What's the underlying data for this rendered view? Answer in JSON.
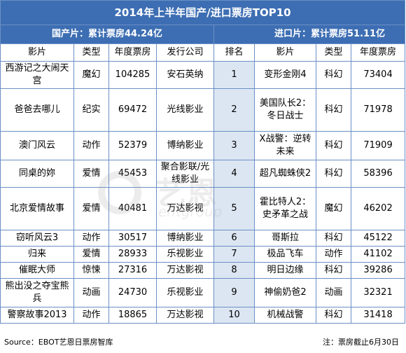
{
  "title": "2014年上半年国产/进口票房TOP10",
  "domestic_summary": "国产片：累计票房44.24亿",
  "import_summary": "进口片：累计票房51.11亿",
  "headers": {
    "dom_film": "影片",
    "dom_type": "类型",
    "dom_box": "年度票房",
    "dom_dist": "发行公司",
    "rank": "排名",
    "imp_film": "影片",
    "imp_type": "类型",
    "imp_box": "年度票房"
  },
  "rows": [
    {
      "dom_film": "西游记之大闹天宫",
      "dom_type": "魔幻",
      "dom_box": "104285",
      "dom_dist": "安石英纳",
      "rank": "1",
      "imp_film": "变形金刚4",
      "imp_type": "科幻",
      "imp_box": "73404"
    },
    {
      "dom_film": "爸爸去哪儿",
      "dom_type": "纪实",
      "dom_box": "69472",
      "dom_dist": "光线影业",
      "rank": "2",
      "imp_film": "美国队长2：冬日战士",
      "imp_type": "科幻",
      "imp_box": "71978"
    },
    {
      "dom_film": "澳门风云",
      "dom_type": "动作",
      "dom_box": "52379",
      "dom_dist": "博纳影业",
      "rank": "3",
      "imp_film": "X战警：逆转未来",
      "imp_type": "科幻",
      "imp_box": "71909"
    },
    {
      "dom_film": "同桌的妳",
      "dom_type": "爱情",
      "dom_box": "45453",
      "dom_dist": "聚合影联/光线影业",
      "rank": "4",
      "imp_film": "超凡蜘蛛侠2",
      "imp_type": "科幻",
      "imp_box": "58396"
    },
    {
      "dom_film": "北京爱情故事",
      "dom_type": "爱情",
      "dom_box": "40481",
      "dom_dist": "万达影视",
      "rank": "5",
      "imp_film": "霍比特人2：史矛革之战",
      "imp_type": "魔幻",
      "imp_box": "46202"
    },
    {
      "dom_film": "窃听风云3",
      "dom_type": "动作",
      "dom_box": "30517",
      "dom_dist": "博纳影业",
      "rank": "6",
      "imp_film": "哥斯拉",
      "imp_type": "科幻",
      "imp_box": "45122"
    },
    {
      "dom_film": "归来",
      "dom_type": "爱情",
      "dom_box": "28933",
      "dom_dist": "乐视影业",
      "rank": "7",
      "imp_film": "极品飞车",
      "imp_type": "动作",
      "imp_box": "41102"
    },
    {
      "dom_film": "催眠大师",
      "dom_type": "惊悚",
      "dom_box": "27316",
      "dom_dist": "万达影视",
      "rank": "8",
      "imp_film": "明日边缘",
      "imp_type": "科幻",
      "imp_box": "39286"
    },
    {
      "dom_film": "熊出没之夺宝熊兵",
      "dom_type": "动画",
      "dom_box": "24730",
      "dom_dist": "乐视影业",
      "rank": "9",
      "imp_film": "神偷奶爸2",
      "imp_type": "动画",
      "imp_box": "32321"
    },
    {
      "dom_film": "警察故事2013",
      "dom_type": "动作",
      "dom_box": "18865",
      "dom_dist": "万达影视",
      "rank": "10",
      "imp_film": "机械战警",
      "imp_type": "科幻",
      "imp_box": "31418"
    }
  ],
  "footer": {
    "source": "Source：EBOT艺恩日票房智库",
    "note": "注：票房截止6月30日"
  },
  "watermark": {
    "cn": "艺恩",
    "en": "entgroup"
  }
}
